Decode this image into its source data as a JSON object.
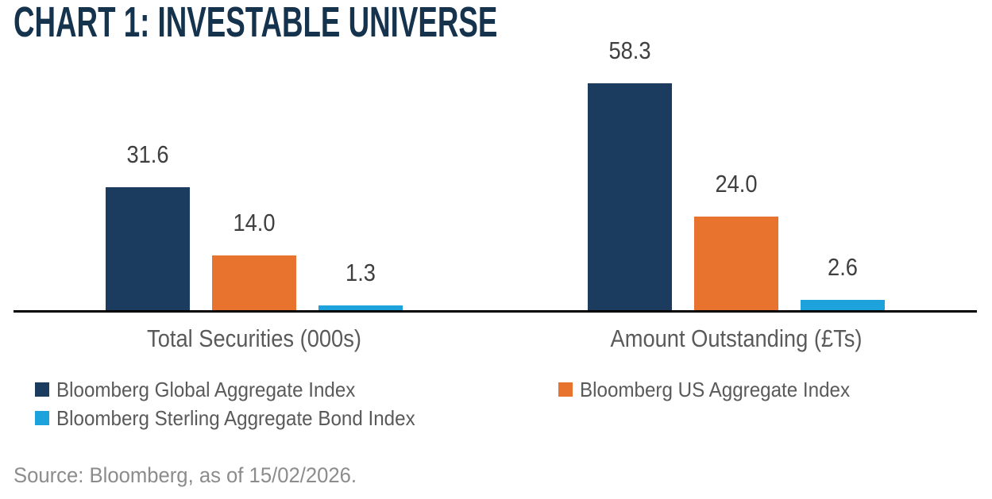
{
  "header": {
    "title": "CHART 1: INVESTABLE UNIVERSE"
  },
  "chart_data": {
    "type": "bar",
    "title": "CHART 1: INVESTABLE UNIVERSE",
    "categories": [
      "Total Securities (000s)",
      "Amount Outstanding (£Ts)"
    ],
    "series": [
      {
        "name": "Bloomberg Global Aggregate Index",
        "color": "#1B3C5F",
        "values": [
          31.6,
          58.3
        ]
      },
      {
        "name": "Bloomberg US Aggregate Index",
        "color": "#E7732E",
        "values": [
          14.0,
          24.0
        ]
      },
      {
        "name": "Bloomberg Sterling Aggregate Bond Index",
        "color": "#1DA2DC",
        "values": [
          1.3,
          2.6
        ]
      }
    ],
    "ylim": [
      0,
      60
    ],
    "grid": false,
    "value_labels_shown": true,
    "value_label_decimals": 1,
    "legend_position": "bottom-left",
    "axis_color": "#000000"
  },
  "footer": {
    "source": "Source: Bloomberg, as of 15/02/2026."
  },
  "colors": {
    "title": "#16334E",
    "value_label": "#3F3F3F",
    "category_label": "#5A5A5A",
    "legend_text": "#5A5A5A",
    "source_text": "#8C8C8C",
    "axis": "#000000",
    "background": "#FFFFFF"
  }
}
